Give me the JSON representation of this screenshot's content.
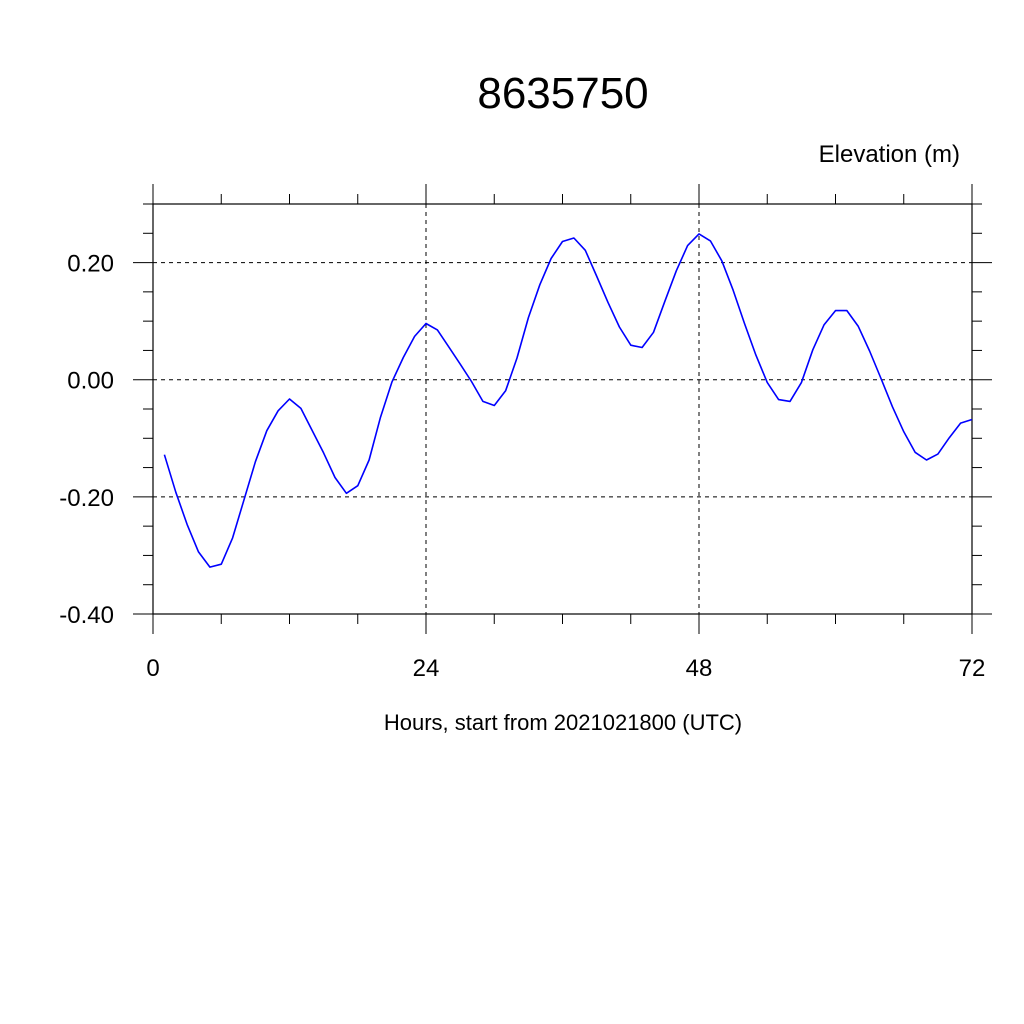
{
  "chart_data": {
    "type": "line",
    "title": "8635750",
    "ylabel": "Elevation (m)",
    "xlabel": "Hours, start from 2021021800 (UTC)",
    "xlim": [
      0,
      72
    ],
    "ylim": [
      -0.4,
      0.3
    ],
    "x_ticks": [
      0,
      24,
      48,
      72
    ],
    "x_tick_labels": [
      "0",
      "24",
      "48",
      "72"
    ],
    "y_ticks": [
      -0.4,
      -0.2,
      0.0,
      0.2
    ],
    "y_tick_labels": [
      "-0.40",
      "-0.20",
      "0.00",
      "0.20"
    ],
    "grid": "dashed at major ticks",
    "line_color": "#0000ff",
    "series": [
      {
        "x": [
          1,
          2,
          3,
          4,
          5,
          6,
          7,
          8,
          9,
          10,
          11,
          12,
          13,
          14,
          15,
          16,
          17,
          18,
          19,
          20,
          21,
          22,
          23,
          24,
          25,
          26,
          27,
          28,
          29,
          30,
          31,
          32,
          33,
          34,
          35,
          36,
          37,
          38,
          39,
          40,
          41,
          42,
          43,
          44,
          45,
          46,
          47,
          48,
          49,
          50,
          51,
          52,
          53,
          54,
          55,
          56,
          57,
          58,
          59,
          60,
          61,
          62,
          63,
          64,
          65,
          66,
          67,
          68,
          69,
          70,
          71,
          72
        ],
        "y": [
          -0.128,
          -0.192,
          -0.247,
          -0.294,
          -0.32,
          -0.315,
          -0.27,
          -0.205,
          -0.14,
          -0.087,
          -0.053,
          -0.033,
          -0.049,
          -0.087,
          -0.125,
          -0.167,
          -0.194,
          -0.181,
          -0.137,
          -0.064,
          -0.004,
          0.038,
          0.074,
          0.096,
          0.085,
          0.056,
          0.027,
          -0.003,
          -0.037,
          -0.044,
          -0.019,
          0.037,
          0.106,
          0.162,
          0.207,
          0.236,
          0.242,
          0.221,
          0.177,
          0.132,
          0.09,
          0.059,
          0.055,
          0.081,
          0.134,
          0.186,
          0.229,
          0.249,
          0.237,
          0.203,
          0.153,
          0.096,
          0.042,
          -0.005,
          -0.034,
          -0.037,
          -0.005,
          0.051,
          0.094,
          0.118,
          0.118,
          0.091,
          0.049,
          0.002,
          -0.046,
          -0.089,
          -0.124,
          -0.137,
          -0.127,
          -0.099,
          -0.074,
          -0.068
        ]
      }
    ]
  }
}
